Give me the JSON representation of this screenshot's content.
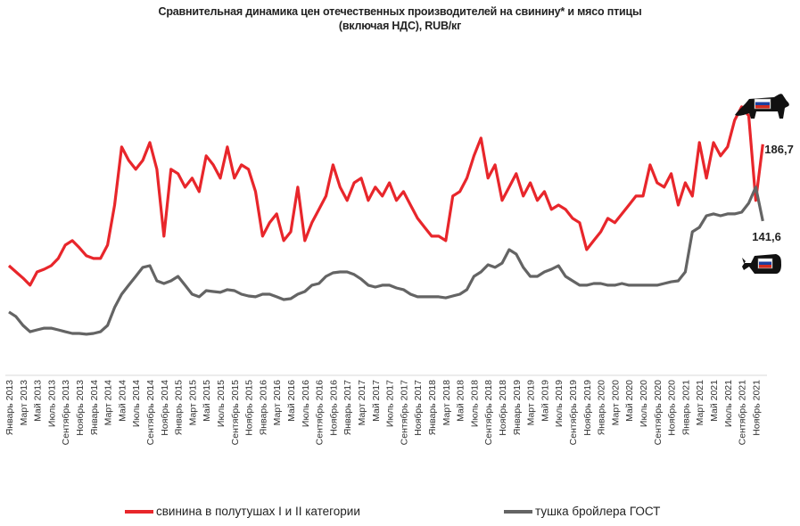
{
  "chart_data": {
    "type": "line",
    "title": "Сравнительная динамика цен  отечественных производителей на свинину* и мясо птицы",
    "subtitle": "(включая НДС), RUB/кг",
    "xlabel": "",
    "ylabel": "",
    "ylim": [
      51.5,
      240
    ],
    "grid": false,
    "legend_position": "bottom",
    "x_start": "Январь 2013",
    "x_end": "Декабрь 2021",
    "tick_labels": [
      "Январь 2013",
      "Март 2013",
      "Май 2013",
      "Июль 2013",
      "Сентябрь 2013",
      "Ноябрь 2013",
      "Январь 2014",
      "Март 2014",
      "Май 2014",
      "Июль 2014",
      "Сентябрь 2014",
      "Ноябрь 2014",
      "Январь 2015",
      "Март 2015",
      "Май 2015",
      "Июль 2015",
      "Сентябрь 2015",
      "Ноябрь 2015",
      "Январь 2016",
      "Март 2016",
      "Май 2016",
      "Июль 2016",
      "Сентябрь 2016",
      "Ноябрь 2016",
      "Январь 2017",
      "Март 2017",
      "Май 2017",
      "Июль 2017",
      "Сентябрь 2017",
      "Ноябрь 2017",
      "Январь 2018",
      "Март 2018",
      "Май 2018",
      "Июль 2018",
      "Сентябрь 2018",
      "Ноябрь 2018",
      "Январь 2019",
      "Март 2019",
      "Май 2019",
      "Июль 2019",
      "Сентябрь 2019",
      "Ноябрь 2019",
      "Январь 2020",
      "Март 2020",
      "Май 2020",
      "Июль 2020",
      "Сентябрь 2020",
      "Ноябрь 2020",
      "Январь 2021",
      "Март 2021",
      "Май 2021",
      "Июль 2021",
      "Сентябрь 2021",
      "Ноябрь 2021"
    ],
    "series": [
      {
        "name": "свинина в полутушах I и II категории",
        "color": "#e8262b",
        "end_label": "186,7",
        "values": [
          115.4,
          111.7,
          108.1,
          103.9,
          111.7,
          113.3,
          115.4,
          119.6,
          127.5,
          130.1,
          125.9,
          121.2,
          119.6,
          119.6,
          127.5,
          151.0,
          185.1,
          177.2,
          172.0,
          177.2,
          187.7,
          172.0,
          132.7,
          172.0,
          169.4,
          161.5,
          166.8,
          158.9,
          179.9,
          174.6,
          166.8,
          185.1,
          166.8,
          174.6,
          172.0,
          158.9,
          132.7,
          140.6,
          145.8,
          130.1,
          135.3,
          161.5,
          130.1,
          140.6,
          148.4,
          156.3,
          174.6,
          161.5,
          153.7,
          164.1,
          166.8,
          153.7,
          161.5,
          156.3,
          164.1,
          153.7,
          158.9,
          151.0,
          143.2,
          137.9,
          132.7,
          132.7,
          130.1,
          156.3,
          158.9,
          166.8,
          179.9,
          190.3,
          166.8,
          174.6,
          153.7,
          161.5,
          169.4,
          156.3,
          164.1,
          153.7,
          158.9,
          148.4,
          151.0,
          148.4,
          143.2,
          140.6,
          124.8,
          130.1,
          135.3,
          143.2,
          140.6,
          145.8,
          151.0,
          156.3,
          156.3,
          174.6,
          164.1,
          161.5,
          169.4,
          151.0,
          164.1,
          156.3,
          187.7,
          166.8,
          187.7,
          179.9,
          185.1,
          200.8,
          208.7,
          203.4,
          153.7,
          186.7
        ]
      },
      {
        "name": "тушка бройлера ГОСТ",
        "color": "#646464",
        "end_label": "141,6",
        "values": [
          88.2,
          85.5,
          80.3,
          76.6,
          77.7,
          78.7,
          78.7,
          77.7,
          76.6,
          75.6,
          75.6,
          75.1,
          75.6,
          76.6,
          80.3,
          90.8,
          98.6,
          103.9,
          109.1,
          114.4,
          115.4,
          106.5,
          104.9,
          106.5,
          109.1,
          103.9,
          98.6,
          97.1,
          100.7,
          100.2,
          99.7,
          101.3,
          100.7,
          98.6,
          97.6,
          97.1,
          98.6,
          98.6,
          97.1,
          95.5,
          96.0,
          98.6,
          100.2,
          103.9,
          104.9,
          109.1,
          111.2,
          111.7,
          111.7,
          110.2,
          107.5,
          103.9,
          102.8,
          103.9,
          103.9,
          102.3,
          101.3,
          98.6,
          97.1,
          97.1,
          97.1,
          97.1,
          96.5,
          97.6,
          98.6,
          101.3,
          109.1,
          111.7,
          115.9,
          114.4,
          116.9,
          124.8,
          122.2,
          114.4,
          109.1,
          109.1,
          111.7,
          113.3,
          115.4,
          109.1,
          106.5,
          103.9,
          103.9,
          104.9,
          104.9,
          103.9,
          103.9,
          104.9,
          103.9,
          103.9,
          103.9,
          103.9,
          103.9,
          104.9,
          105.9,
          106.5,
          111.7,
          135.3,
          137.9,
          144.7,
          145.8,
          144.7,
          145.8,
          145.8,
          146.8,
          152.1,
          161.5,
          141.6
        ]
      }
    ]
  },
  "icons": {
    "pig": "pig-flag-icon",
    "chicken": "chicken-flag-icon"
  },
  "flag_colors": [
    "#ffffff",
    "#1c3fa0",
    "#d52b1e"
  ]
}
